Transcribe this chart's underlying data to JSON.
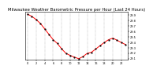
{
  "title": "Milwaukee Weather Barometric Pressure per Hour (Last 24 Hours)",
  "x_values": [
    0,
    1,
    2,
    3,
    4,
    5,
    6,
    7,
    8,
    9,
    10,
    11,
    12,
    13,
    14,
    15,
    16,
    17,
    18,
    19,
    20,
    21,
    22,
    23
  ],
  "y_values": [
    29.92,
    29.88,
    29.82,
    29.75,
    29.65,
    29.55,
    29.45,
    29.38,
    29.28,
    29.2,
    29.16,
    29.13,
    29.1,
    29.14,
    29.2,
    29.22,
    29.28,
    29.34,
    29.4,
    29.45,
    29.48,
    29.44,
    29.4,
    29.36
  ],
  "line_color": "#ff0000",
  "marker_color": "#000000",
  "bg_color": "#ffffff",
  "grid_color": "#888888",
  "title_color": "#000000",
  "ylim": [
    29.08,
    29.96
  ],
  "yticks": [
    29.1,
    29.2,
    29.3,
    29.4,
    29.5,
    29.6,
    29.7,
    29.8,
    29.9
  ],
  "ytick_labels": [
    "29.1",
    "29.2",
    "29.3",
    "29.4",
    "29.5",
    "29.6",
    "29.7",
    "29.8",
    "29.9"
  ],
  "xtick_positions": [
    0,
    2,
    4,
    6,
    8,
    10,
    12,
    14,
    16,
    18,
    20,
    22
  ],
  "xtick_labels": [
    "0",
    "2",
    "4",
    "6",
    "8",
    "10",
    "12",
    "14",
    "16",
    "18",
    "20",
    "22"
  ],
  "title_fontsize": 3.8,
  "tick_fontsize": 2.5,
  "line_width": 0.7,
  "marker_size": 1.2,
  "vgrid_positions": [
    0,
    2,
    4,
    6,
    8,
    10,
    12,
    14,
    16,
    18,
    20,
    22
  ]
}
